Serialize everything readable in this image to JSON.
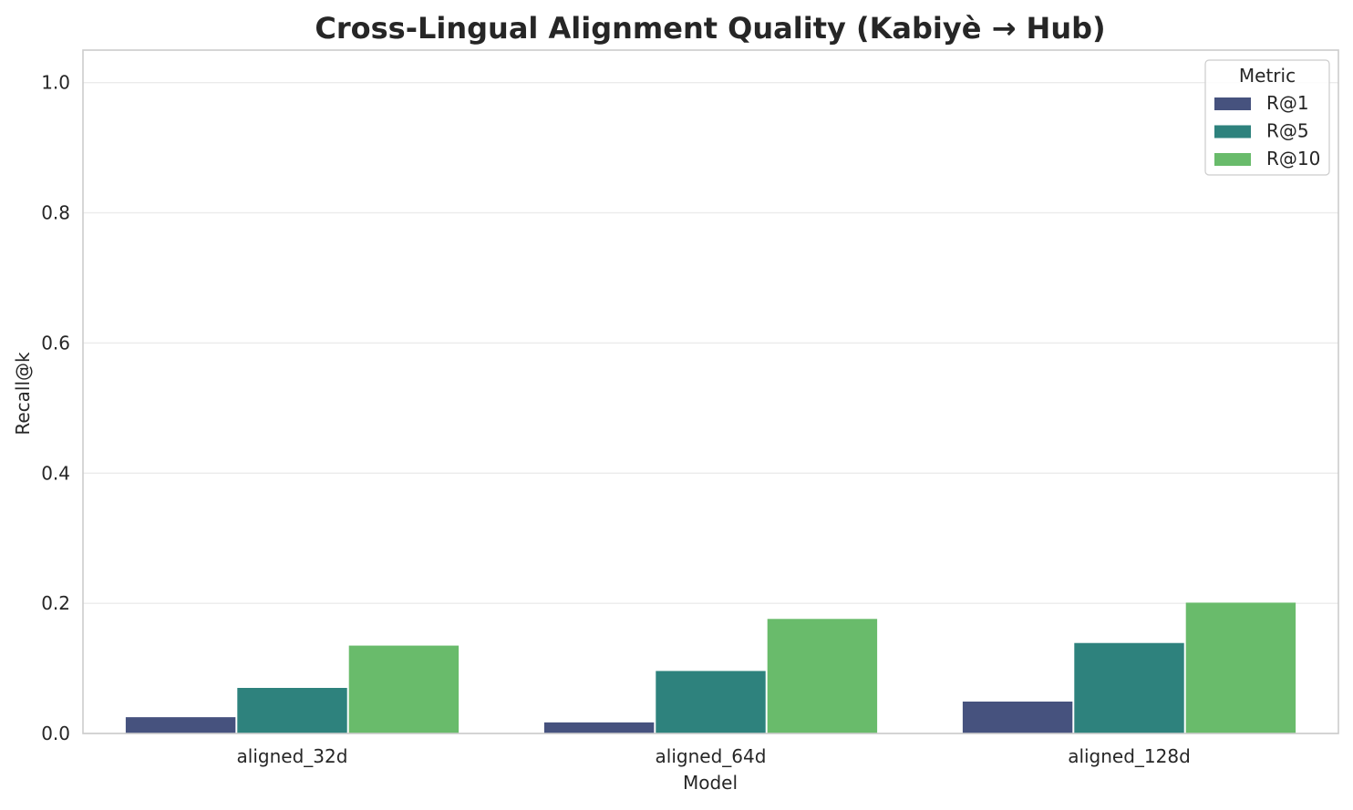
{
  "chart_data": {
    "type": "bar",
    "title": "Cross-Lingual Alignment Quality (Kabiyè → Hub)",
    "xlabel": "Model",
    "ylabel": "Recall@k",
    "categories": [
      "aligned_32d",
      "aligned_64d",
      "aligned_128d"
    ],
    "series": [
      {
        "name": "R@1",
        "values": [
          0.025,
          0.017,
          0.049
        ],
        "color": "#46527e"
      },
      {
        "name": "R@5",
        "values": [
          0.07,
          0.096,
          0.139
        ],
        "color": "#2e827d"
      },
      {
        "name": "R@10",
        "values": [
          0.135,
          0.176,
          0.201
        ],
        "color": "#69bb6b"
      }
    ],
    "ylim": [
      0,
      1.05
    ],
    "yticks": [
      "0.0",
      "0.2",
      "0.4",
      "0.6",
      "0.8",
      "1.0"
    ],
    "grid": true,
    "legend": {
      "title": "Metric",
      "placement": "top-right"
    }
  }
}
